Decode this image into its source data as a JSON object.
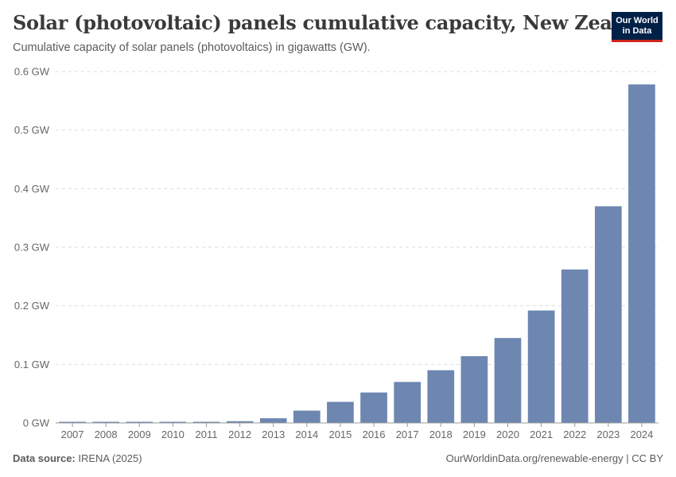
{
  "header": {
    "title": "Solar (photovoltaic) panels cumulative capacity, New Zealand",
    "subtitle": "Cumulative capacity of solar panels (photovoltaics) in gigawatts (GW)."
  },
  "logo": {
    "line1": "Our World",
    "line2": "in Data"
  },
  "footer": {
    "source_label": "Data source:",
    "source_value": "IRENA (2025)",
    "link": "OurWorldinData.org/renewable-energy | CC BY"
  },
  "colors": {
    "bar": "#6d87b1",
    "grid": "#dddddd",
    "axis": "#999999"
  },
  "chart_data": {
    "type": "bar",
    "title": "Solar (photovoltaic) panels cumulative capacity, New Zealand",
    "xlabel": "",
    "ylabel": "",
    "ylim": [
      0,
      0.6
    ],
    "yticks": [
      0,
      0.1,
      0.2,
      0.3,
      0.4,
      0.5,
      0.6
    ],
    "ytick_labels": [
      "0 GW",
      "0.1 GW",
      "0.2 GW",
      "0.3 GW",
      "0.4 GW",
      "0.5 GW",
      "0.6 GW"
    ],
    "grid": true,
    "categories": [
      "2007",
      "2008",
      "2009",
      "2010",
      "2011",
      "2012",
      "2013",
      "2014",
      "2015",
      "2016",
      "2017",
      "2018",
      "2019",
      "2020",
      "2021",
      "2022",
      "2023",
      "2024"
    ],
    "values": [
      0.002,
      0.002,
      0.002,
      0.002,
      0.002,
      0.003,
      0.008,
      0.021,
      0.036,
      0.052,
      0.07,
      0.09,
      0.114,
      0.145,
      0.192,
      0.262,
      0.37,
      0.578
    ]
  }
}
